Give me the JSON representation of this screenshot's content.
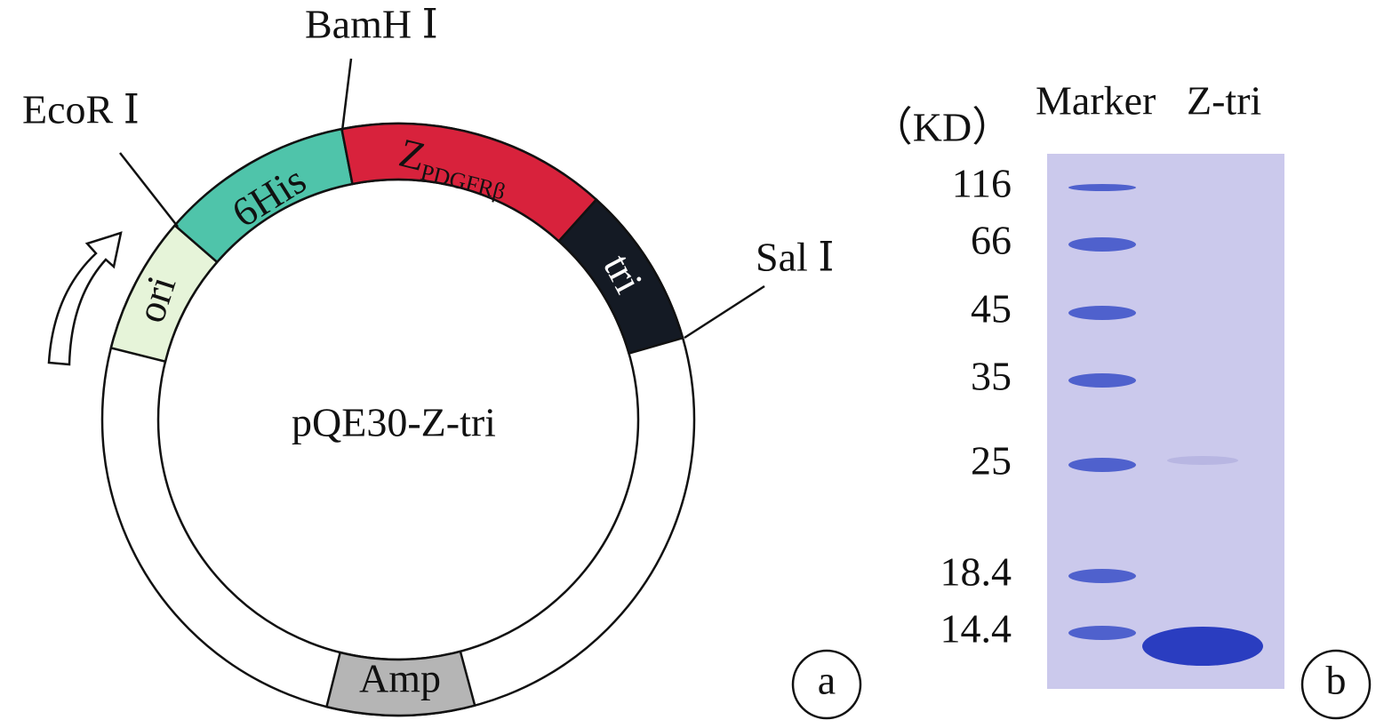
{
  "plasmid": {
    "name": "pQE30-Z-tri",
    "segments": [
      {
        "label": "ori",
        "color": "#e6f4d9"
      },
      {
        "label": "6His",
        "color": "#4fc4aa"
      },
      {
        "label": "Z",
        "subscript": "PDGFRβ",
        "color": "#d8223c"
      },
      {
        "label": "tri",
        "color": "#141a24"
      },
      {
        "label": "Amp",
        "color": "#b5b5b5"
      }
    ],
    "sites": [
      {
        "label": "EcoR Ⅰ"
      },
      {
        "label": "BamH Ⅰ"
      },
      {
        "label": "Sal Ⅰ"
      }
    ],
    "panel": "a"
  },
  "gel": {
    "lanes": [
      "Marker",
      "Z-tri"
    ],
    "unit": "（KD）",
    "markers": [
      116,
      66,
      45,
      35,
      25,
      18.4,
      14.4
    ],
    "panel": "b"
  }
}
